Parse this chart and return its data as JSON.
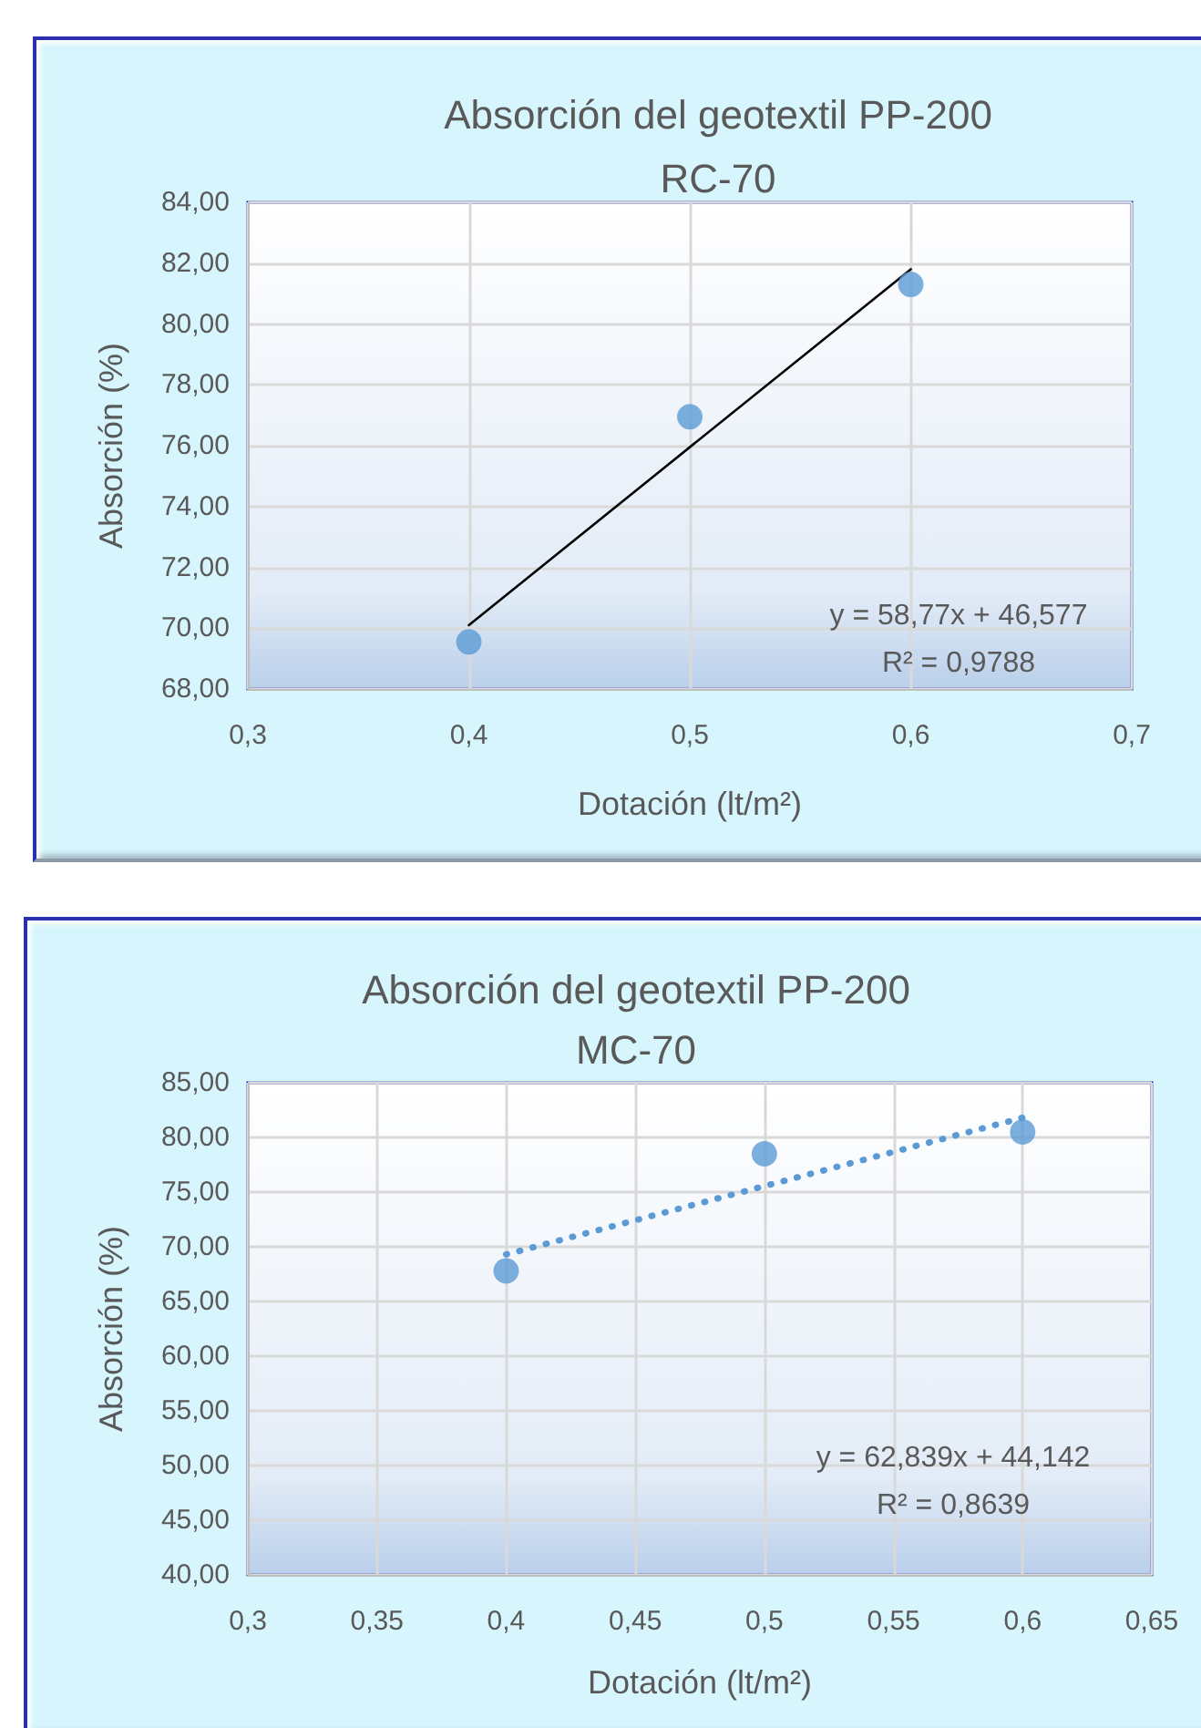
{
  "chart_data": [
    {
      "type": "scatter",
      "title": "Absorción del geotextil PP-200",
      "subtitle": "RC-70",
      "xlabel": "Dotación (lt/m²)",
      "ylabel": "Absorción (%)",
      "marker": "circle",
      "grid": true,
      "series": [
        {
          "color": "#5b9bd5",
          "x": [
            0.4,
            0.5,
            0.6
          ],
          "values": [
            69.55,
            76.95,
            81.3
          ]
        },
        {
          "type": "line",
          "color": "#000000",
          "x": [
            0.4,
            0.6
          ],
          "values": [
            70.1,
            81.8
          ],
          "marker": "none",
          "line_style": "solid"
        }
      ],
      "xlim": [
        0.3,
        0.7
      ],
      "xticks": [
        {
          "value": 0.3,
          "label": "0,3"
        },
        {
          "value": 0.4,
          "label": "0,4"
        },
        {
          "value": 0.5,
          "label": "0,5"
        },
        {
          "value": 0.6,
          "label": "0,6"
        },
        {
          "value": 0.7,
          "label": "0,7"
        }
      ],
      "ylim": [
        68,
        84
      ],
      "yticks": [
        {
          "value": 68,
          "label": "68,00"
        },
        {
          "value": 70,
          "label": "70,00"
        },
        {
          "value": 72,
          "label": "72,00"
        },
        {
          "value": 74,
          "label": "74,00"
        },
        {
          "value": 76,
          "label": "76,00"
        },
        {
          "value": 78,
          "label": "78,00"
        },
        {
          "value": 80,
          "label": "80,00"
        },
        {
          "value": 82,
          "label": "82,00"
        },
        {
          "value": 84,
          "label": "84,00"
        }
      ],
      "annotations": [
        "y = 58,77x + 46,577",
        "R² = 0,9788"
      ]
    },
    {
      "type": "scatter",
      "title": "Absorción del geotextil PP-200",
      "subtitle": "MC-70",
      "xlabel": "Dotación (lt/m²)",
      "ylabel": "Absorción (%)",
      "marker": "circle",
      "grid": true,
      "series": [
        {
          "color": "#5b9bd5",
          "x": [
            0.4,
            0.5,
            0.6
          ],
          "values": [
            67.8,
            78.5,
            80.5
          ]
        },
        {
          "type": "line",
          "color": "#5b9bd5",
          "x": [
            0.4,
            0.6
          ],
          "values": [
            69.3,
            81.8
          ],
          "marker": "none",
          "line_style": "dotted"
        }
      ],
      "xlim": [
        0.3,
        0.65
      ],
      "xticks": [
        {
          "value": 0.3,
          "label": "0,3"
        },
        {
          "value": 0.35,
          "label": "0,35"
        },
        {
          "value": 0.4,
          "label": "0,4"
        },
        {
          "value": 0.45,
          "label": "0,45"
        },
        {
          "value": 0.5,
          "label": "0,5"
        },
        {
          "value": 0.55,
          "label": "0,55"
        },
        {
          "value": 0.6,
          "label": "0,6"
        },
        {
          "value": 0.65,
          "label": "0,65"
        }
      ],
      "ylim": [
        40,
        85
      ],
      "yticks": [
        {
          "value": 40,
          "label": "40,00"
        },
        {
          "value": 45,
          "label": "45,00"
        },
        {
          "value": 50,
          "label": "50,00"
        },
        {
          "value": 55,
          "label": "55,00"
        },
        {
          "value": 60,
          "label": "60,00"
        },
        {
          "value": 65,
          "label": "65,00"
        },
        {
          "value": 70,
          "label": "70,00"
        },
        {
          "value": 75,
          "label": "75,00"
        },
        {
          "value": 80,
          "label": "80,00"
        },
        {
          "value": 85,
          "label": "85,00"
        }
      ],
      "annotations": [
        "y = 62,839x + 44,142",
        "R² = 0,8639"
      ]
    }
  ]
}
